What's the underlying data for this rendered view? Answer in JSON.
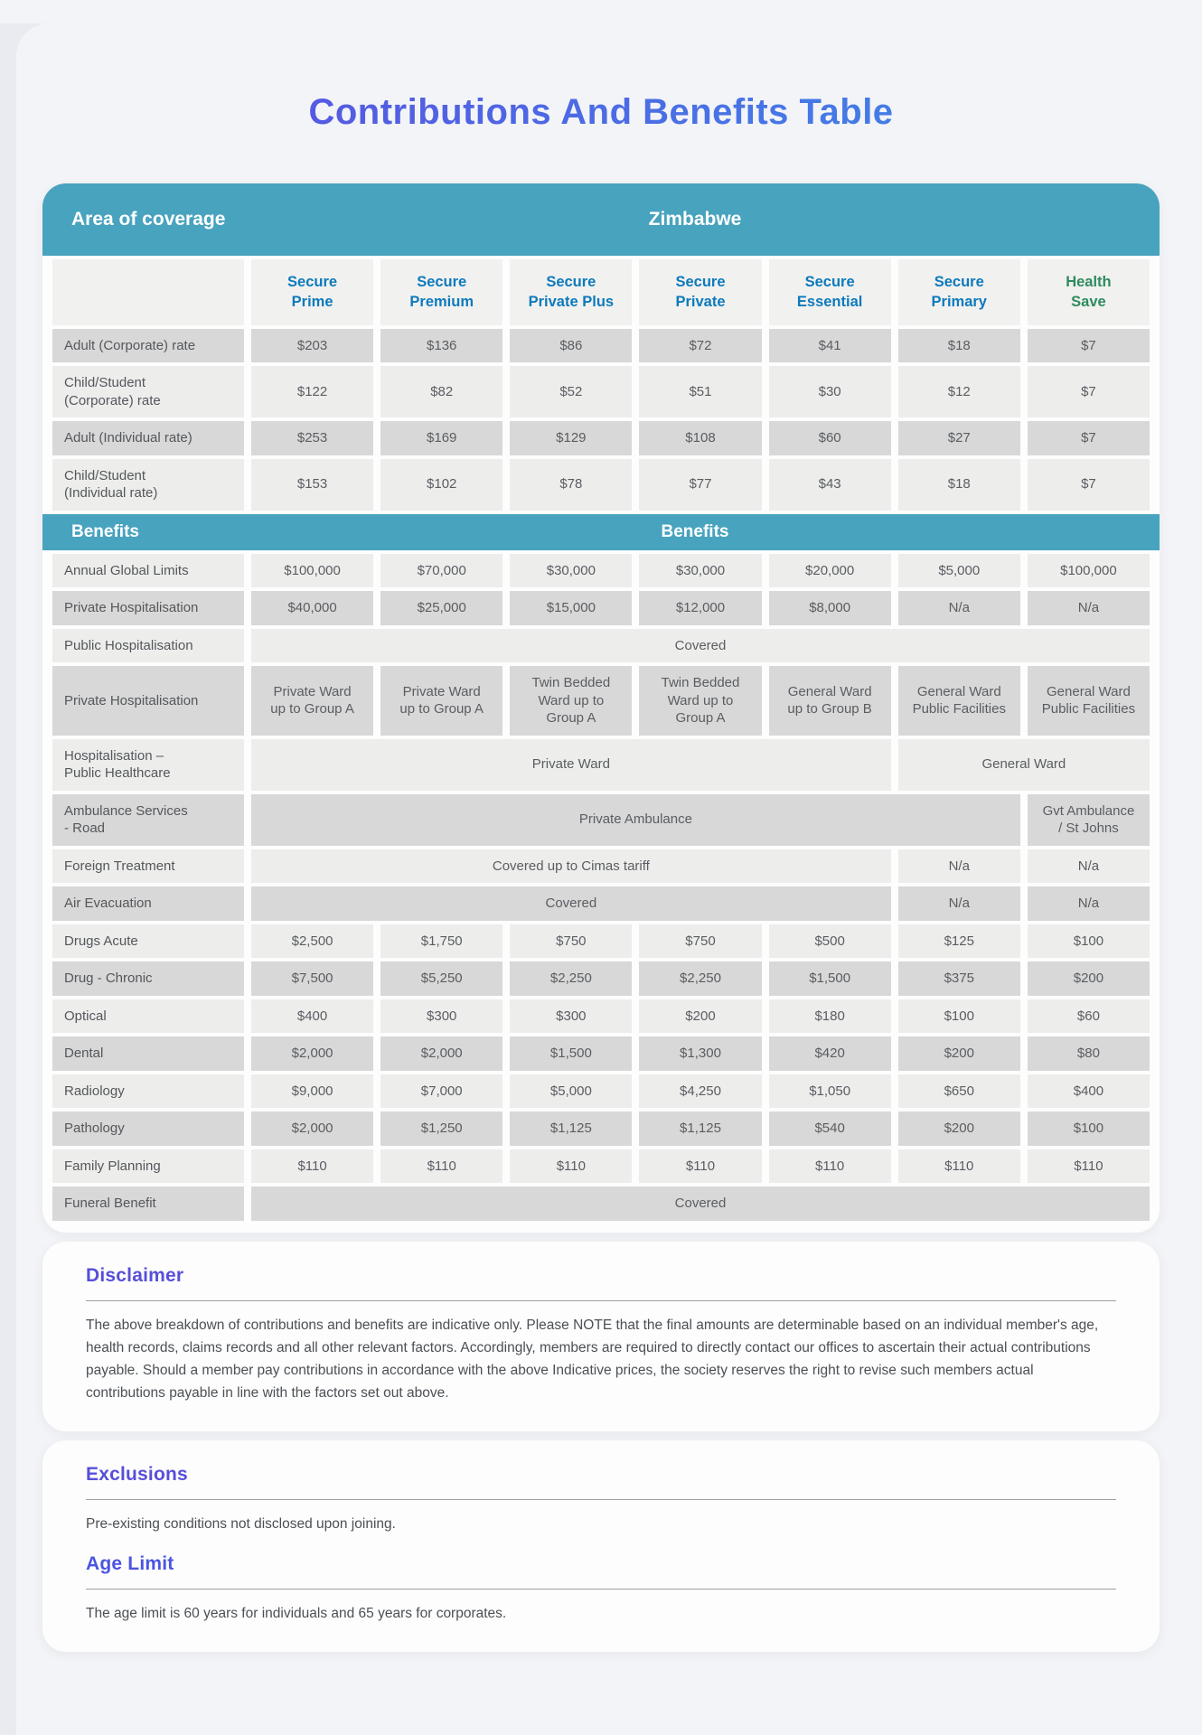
{
  "title": "Contributions And Benefits Table",
  "table": {
    "area_label": "Area of coverage",
    "region": "Zimbabwe",
    "columns": [
      "Secure\nPrime",
      "Secure\nPremium",
      "Secure\nPrivate Plus",
      "Secure\nPrivate",
      "Secure\nEssential",
      "Secure\nPrimary",
      "Health\nSave"
    ],
    "rates": [
      {
        "label": "Adult (Corporate) rate",
        "values": [
          "$203",
          "$136",
          "$86",
          "$72",
          "$41",
          "$18",
          "$7"
        ]
      },
      {
        "label": "Child/Student\n(Corporate) rate",
        "values": [
          "$122",
          "$82",
          "$52",
          "$51",
          "$30",
          "$12",
          "$7"
        ]
      },
      {
        "label": "Adult (Individual rate)",
        "values": [
          "$253",
          "$169",
          "$129",
          "$108",
          "$60",
          "$27",
          "$7"
        ]
      },
      {
        "label": "Child/Student\n(Individual rate)",
        "values": [
          "$153",
          "$102",
          "$78",
          "$77",
          "$43",
          "$18",
          "$7"
        ]
      }
    ],
    "benefits_header": {
      "left": "Benefits",
      "center": "Benefits"
    },
    "benefit_rows": [
      {
        "label": "Annual Global Limits",
        "values": [
          "$100,000",
          "$70,000",
          "$30,000",
          "$30,000",
          "$20,000",
          "$5,000",
          "$100,000"
        ]
      },
      {
        "label": "Private Hospitalisation",
        "values": [
          "$40,000",
          "$25,000",
          "$15,000",
          "$12,000",
          "$8,000",
          "N/a",
          "N/a"
        ]
      },
      {
        "label": "Public Hospitalisation",
        "cells": [
          {
            "text": "Covered",
            "span": 7
          }
        ]
      },
      {
        "label": "Private Hospitalisation",
        "values": [
          "Private Ward\nup to Group A",
          "Private Ward\nup to Group A",
          "Twin Bedded\nWard up to\nGroup A",
          "Twin Bedded\nWard up to\nGroup A",
          "General Ward\nup to Group B",
          "General Ward\nPublic Facilities",
          "General Ward\nPublic Facilities"
        ]
      },
      {
        "label": "Hospitalisation –\nPublic Healthcare",
        "cells": [
          {
            "text": "Private Ward",
            "span": 5
          },
          {
            "text": "General Ward",
            "span": 2
          }
        ]
      },
      {
        "label": "Ambulance Services\n- Road",
        "cells": [
          {
            "text": "Private Ambulance",
            "span": 6
          },
          {
            "text": "Gvt Ambulance\n/ St Johns",
            "span": 1
          }
        ]
      },
      {
        "label": "Foreign Treatment",
        "cells": [
          {
            "text": "Covered up to Cimas tariff",
            "span": 5
          },
          {
            "text": "N/a",
            "span": 1
          },
          {
            "text": "N/a",
            "span": 1
          }
        ]
      },
      {
        "label": "Air Evacuation",
        "cells": [
          {
            "text": "Covered",
            "span": 5
          },
          {
            "text": "N/a",
            "span": 1
          },
          {
            "text": "N/a",
            "span": 1
          }
        ]
      },
      {
        "label": "Drugs Acute",
        "values": [
          "$2,500",
          "$1,750",
          "$750",
          "$750",
          "$500",
          "$125",
          "$100"
        ]
      },
      {
        "label": "Drug - Chronic",
        "values": [
          "$7,500",
          "$5,250",
          "$2,250",
          "$2,250",
          "$1,500",
          "$375",
          "$200"
        ]
      },
      {
        "label": "Optical",
        "values": [
          "$400",
          "$300",
          "$300",
          "$200",
          "$180",
          "$100",
          "$60"
        ]
      },
      {
        "label": "Dental",
        "values": [
          "$2,000",
          "$2,000",
          "$1,500",
          "$1,300",
          "$420",
          "$200",
          "$80"
        ]
      },
      {
        "label": "Radiology",
        "values": [
          "$9,000",
          "$7,000",
          "$5,000",
          "$4,250",
          "$1,050",
          "$650",
          "$400"
        ]
      },
      {
        "label": "Pathology",
        "values": [
          "$2,000",
          "$1,250",
          "$1,125",
          "$1,125",
          "$540",
          "$200",
          "$100"
        ]
      },
      {
        "label": "Family Planning",
        "values": [
          "$110",
          "$110",
          "$110",
          "$110",
          "$110",
          "$110",
          "$110"
        ]
      },
      {
        "label": "Funeral Benefit",
        "cells": [
          {
            "text": "Covered",
            "span": 7
          }
        ]
      }
    ]
  },
  "disclaimer": {
    "heading": "Disclaimer",
    "text": "The above breakdown of contributions and benefits are indicative only. Please NOTE that the final amounts are determinable based on an individual member's age, health records, claims records and all other relevant factors. Accordingly, members are required to directly contact our offices to ascertain their actual contributions payable. Should a member pay contributions in accordance with the above Indicative prices, the society reserves the right to revise such members actual contributions payable in line with the factors set out above."
  },
  "exclusions": {
    "heading": "Exclusions",
    "text": "Pre-existing conditions not disclosed upon joining."
  },
  "age_limit": {
    "heading": "Age Limit",
    "text": "The age limit is 60 years for individuals and 65 years for corporates."
  },
  "colors": {
    "teal_band": "#48a3be",
    "plan_header_blue": "#0d7abc",
    "health_save_green": "#2e8b5f",
    "heading_purple": "#574fd8",
    "age_limit_blue": "#4a55e0",
    "title_gradient_start": "#5a4fe0",
    "title_gradient_end": "#3e87e8",
    "row_dark": "#d8d8d8",
    "row_light": "#ededec"
  }
}
